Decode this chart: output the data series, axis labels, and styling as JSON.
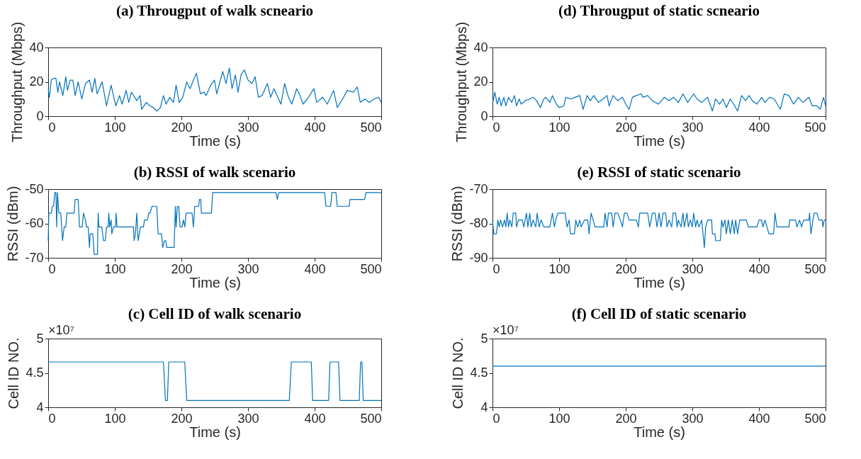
{
  "chart_data": [
    {
      "type": "line",
      "title": "(a) Througput of walk scneario",
      "xlabel": "Time (s)",
      "ylabel": "Throughput (Mbps)",
      "xlim": [
        0,
        500
      ],
      "xticks": [
        0,
        100,
        200,
        300,
        400,
        500
      ],
      "ylim": [
        0,
        40
      ],
      "yticks": [
        0,
        20,
        40
      ],
      "grid": false,
      "color": "#0072bd",
      "x": [
        0,
        1.8,
        4.6,
        8,
        11.6,
        14.5,
        17,
        22,
        26.4,
        29,
        33,
        37,
        40.5,
        45,
        50.4,
        56,
        62,
        66,
        70,
        73.4,
        81,
        87.5,
        94.5,
        101.5,
        107,
        111,
        117,
        121,
        125,
        133,
        138,
        140.3,
        147.4,
        152.7,
        158,
        163,
        168.5,
        173,
        177,
        182.6,
        188,
        192,
        196.8,
        202,
        208,
        213,
        218,
        222.5,
        228.5,
        234,
        237,
        244,
        249.6,
        253,
        262,
        267,
        272,
        276,
        281,
        285,
        289.5,
        294.4,
        300,
        306,
        310.6,
        315.6,
        321,
        329,
        334,
        339,
        349.4,
        355,
        360.7,
        365.7,
        373,
        378,
        382.6,
        389,
        399,
        403,
        412,
        419,
        428.4,
        434,
        442,
        449,
        458,
        464,
        468.5,
        475.3,
        482,
        489,
        496,
        500
      ],
      "values": [
        16,
        11,
        21,
        22,
        22,
        14,
        20,
        12,
        23,
        15,
        21,
        21,
        12,
        20,
        10,
        19,
        21,
        14,
        22,
        13,
        20,
        6,
        18,
        6,
        12,
        7,
        15,
        8,
        14,
        9,
        12,
        4,
        8,
        6,
        5,
        3,
        5,
        12,
        7,
        11,
        8,
        18,
        8,
        11,
        20,
        16,
        21,
        25,
        13,
        14,
        12,
        18,
        21,
        13,
        26,
        19,
        28,
        16,
        24,
        14,
        24,
        27,
        21,
        19,
        23,
        11,
        12,
        19,
        11,
        16,
        7,
        19,
        11,
        7,
        16,
        12,
        7,
        10,
        16,
        8,
        11,
        7,
        15,
        5,
        10,
        15,
        14,
        17,
        8,
        10,
        8,
        10,
        11,
        8
      ]
    },
    {
      "type": "line",
      "title": "(b) RSSI of walk scenario",
      "xlabel": "Time (s)",
      "ylabel": "RSSI (dBm)",
      "xlim": [
        0,
        500
      ],
      "xticks": [
        0,
        100,
        200,
        300,
        400,
        500
      ],
      "ylim": [
        -70,
        -50
      ],
      "yticks": [
        -70,
        -60,
        -50
      ],
      "grid": false,
      "color": "#0072bd",
      "x": [
        0,
        1,
        5,
        6,
        8,
        10,
        11.6,
        12.7,
        14,
        16,
        19,
        21.5,
        24,
        26.4,
        28,
        39,
        40.5,
        45,
        47,
        51,
        53,
        56,
        57.5,
        60,
        62,
        63,
        67,
        69,
        74,
        75,
        76,
        80.4,
        83,
        85.7,
        87.5,
        90,
        91,
        92.4,
        94.5,
        95.5,
        98,
        101,
        102,
        103.3,
        128,
        129,
        131,
        133,
        135,
        138.6,
        143,
        144.6,
        149,
        151,
        153,
        156,
        163,
        165,
        170,
        172,
        174.5,
        176.6,
        178,
        189,
        191,
        192,
        194,
        196,
        198,
        201,
        203,
        205,
        207,
        216,
        218,
        220,
        226,
        227,
        229,
        230,
        245,
        247,
        342,
        344,
        346,
        415,
        417,
        424,
        426,
        432,
        434,
        452,
        453,
        475,
        477,
        500
      ],
      "values": [
        -65,
        -57,
        -57,
        -55,
        -55,
        -51,
        -51,
        -61,
        -51,
        -57,
        -57,
        -65,
        -61,
        -61,
        -57,
        -57,
        -53,
        -53,
        -61,
        -61,
        -57,
        -59,
        -61,
        -61,
        -67,
        -63,
        -63,
        -69,
        -69,
        -57,
        -61,
        -61,
        -65,
        -65,
        -61,
        -61,
        -57,
        -61,
        -59,
        -63,
        -61,
        -61,
        -57,
        -61,
        -61,
        -65,
        -63,
        -57,
        -65,
        -61,
        -61,
        -59,
        -59,
        -57,
        -57,
        -55,
        -55,
        -63,
        -63,
        -67,
        -65,
        -65,
        -67,
        -67,
        -55,
        -61,
        -55,
        -55,
        -61,
        -61,
        -59,
        -61,
        -57,
        -57,
        -61,
        -55,
        -55,
        -53,
        -53,
        -57,
        -57,
        -51,
        -51,
        -53,
        -51,
        -51,
        -55,
        -55,
        -51,
        -51,
        -55,
        -55,
        -53,
        -53,
        -51,
        -51
      ]
    },
    {
      "type": "line",
      "title": "(c) Cell ID of walk scenario",
      "xlabel": "Time (s)",
      "ylabel": "Cell ID NO.",
      "xlim": [
        0,
        500
      ],
      "xticks": [
        0,
        100,
        200,
        300,
        400,
        500
      ],
      "ylim": [
        4,
        5
      ],
      "yticks": [
        4,
        4.5,
        5
      ],
      "grid": false,
      "color": "#0072bd",
      "annotations": [
        "×10⁷"
      ],
      "x": [
        0,
        173,
        176,
        179,
        181,
        205,
        208,
        362,
        365,
        395,
        397,
        421,
        423,
        436,
        438,
        467,
        469,
        471,
        473,
        500
      ],
      "values": [
        4.66,
        4.66,
        4.1,
        4.1,
        4.66,
        4.66,
        4.1,
        4.1,
        4.66,
        4.66,
        4.1,
        4.1,
        4.66,
        4.66,
        4.1,
        4.1,
        4.66,
        4.66,
        4.1,
        4.1
      ]
    },
    {
      "type": "line",
      "title": "(d) Througput of static scneario",
      "xlabel": "Time (s)",
      "ylabel": "Throughput (Mbps)",
      "xlim": [
        0,
        500
      ],
      "xticks": [
        0,
        100,
        200,
        300,
        400,
        500
      ],
      "ylim": [
        0,
        40
      ],
      "yticks": [
        0,
        20,
        40
      ],
      "grid": false,
      "color": "#0072bd",
      "x": [
        0,
        3.5,
        7,
        10,
        13,
        17,
        20,
        24,
        29,
        33,
        36,
        40,
        43,
        49,
        56,
        61,
        66,
        72,
        77,
        80,
        86,
        90,
        96,
        100,
        107,
        110,
        117,
        124,
        131,
        136,
        142,
        147,
        152,
        159,
        166,
        172,
        175,
        181,
        188,
        195,
        200,
        205,
        210,
        216,
        223,
        226,
        233,
        240,
        249,
        258,
        265,
        272,
        279,
        286,
        293,
        302,
        307,
        314,
        323,
        330,
        335,
        341,
        346,
        351,
        357,
        362,
        368,
        374,
        380,
        385,
        390,
        397,
        404,
        409,
        416,
        423,
        432,
        438,
        445,
        452,
        459,
        466,
        475,
        480,
        487,
        492,
        497,
        500
      ],
      "values": [
        7,
        14,
        7,
        11,
        6,
        11,
        6,
        11,
        8,
        12,
        6,
        10,
        7,
        9,
        10,
        11,
        9,
        5,
        10,
        11,
        8,
        12,
        7,
        5,
        6,
        11,
        10,
        11,
        12,
        4,
        12,
        9,
        12,
        8,
        10,
        12,
        6,
        12,
        9,
        11,
        7,
        4,
        11,
        12,
        13,
        11,
        12,
        9,
        7,
        11,
        9,
        11,
        8,
        13,
        8,
        13,
        10,
        8,
        11,
        3,
        10,
        7,
        10,
        5,
        10,
        7,
        3,
        12,
        9,
        12,
        9,
        7,
        11,
        8,
        11,
        10,
        4,
        13,
        12,
        7,
        11,
        8,
        11,
        6,
        6,
        4,
        11,
        6
      ]
    },
    {
      "type": "line",
      "title": "(e) RSSI of static scenario",
      "xlabel": "Time (s)",
      "ylabel": "RSSI (dBm)",
      "xlim": [
        0,
        500
      ],
      "xticks": [
        0,
        100,
        200,
        300,
        400,
        500
      ],
      "ylim": [
        -90,
        -70
      ],
      "yticks": [
        -90,
        -80,
        -70
      ],
      "grid": false,
      "color": "#0072bd",
      "x": [
        0,
        2,
        6,
        8,
        10,
        12,
        15,
        18,
        20,
        22,
        24,
        26,
        29,
        31,
        35,
        36,
        39,
        45,
        47,
        51,
        53,
        56,
        58,
        61,
        65,
        67,
        70,
        73,
        77,
        86,
        90,
        93,
        95,
        98,
        109,
        112,
        115,
        117,
        123,
        125,
        128,
        131,
        133,
        138,
        143,
        145,
        148,
        154,
        167,
        169,
        172,
        174,
        179,
        181,
        184,
        188,
        192,
        195,
        198,
        202,
        205,
        216,
        219,
        221,
        233,
        236,
        240,
        244,
        247,
        250,
        253,
        256,
        260,
        262,
        265,
        269,
        271,
        275,
        277,
        279,
        283,
        286,
        288,
        292,
        294,
        297,
        300,
        302,
        305,
        307,
        310,
        314,
        318,
        320,
        323,
        329,
        330,
        334,
        335,
        342,
        344,
        346,
        349,
        351,
        354,
        357,
        360,
        363,
        365,
        368,
        371,
        381,
        384,
        397,
        400,
        404,
        406,
        409,
        412,
        415,
        422,
        424,
        427,
        445,
        446,
        455,
        457,
        461,
        464,
        467,
        475,
        476,
        478,
        481,
        483,
        487,
        490,
        495,
        496,
        498,
        500
      ],
      "values": [
        -79,
        -83,
        -83,
        -79,
        -81,
        -79,
        -81,
        -79,
        -81,
        -77,
        -81,
        -79,
        -81,
        -77,
        -77,
        -81,
        -79,
        -79,
        -81,
        -77,
        -81,
        -77,
        -81,
        -79,
        -81,
        -77,
        -81,
        -79,
        -81,
        -81,
        -77,
        -81,
        -79,
        -77,
        -77,
        -81,
        -79,
        -83,
        -83,
        -79,
        -81,
        -79,
        -81,
        -79,
        -79,
        -83,
        -77,
        -81,
        -81,
        -77,
        -81,
        -77,
        -77,
        -81,
        -77,
        -77,
        -79,
        -81,
        -77,
        -77,
        -79,
        -79,
        -81,
        -77,
        -77,
        -81,
        -77,
        -77,
        -81,
        -77,
        -81,
        -77,
        -77,
        -81,
        -79,
        -81,
        -77,
        -77,
        -81,
        -79,
        -81,
        -77,
        -81,
        -77,
        -81,
        -79,
        -81,
        -77,
        -81,
        -79,
        -81,
        -79,
        -87,
        -81,
        -79,
        -79,
        -83,
        -83,
        -85,
        -85,
        -79,
        -81,
        -79,
        -83,
        -79,
        -83,
        -79,
        -83,
        -79,
        -83,
        -79,
        -79,
        -81,
        -81,
        -79,
        -79,
        -81,
        -79,
        -81,
        -83,
        -83,
        -77,
        -81,
        -81,
        -79,
        -79,
        -81,
        -79,
        -81,
        -79,
        -79,
        -77,
        -83,
        -79,
        -77,
        -77,
        -79,
        -79,
        -81,
        -79,
        -79
      ]
    },
    {
      "type": "line",
      "title": "(f) Cell ID of static scenario",
      "xlabel": "Time (s)",
      "ylabel": "Cell ID NO.",
      "xlim": [
        0,
        500
      ],
      "xticks": [
        0,
        100,
        200,
        300,
        400,
        500
      ],
      "ylim": [
        4,
        5
      ],
      "yticks": [
        4,
        4.5,
        5
      ],
      "grid": false,
      "color": "#0072bd",
      "annotations": [
        "×10⁷"
      ],
      "x": [
        0,
        500
      ],
      "values": [
        4.6,
        4.6
      ]
    }
  ]
}
